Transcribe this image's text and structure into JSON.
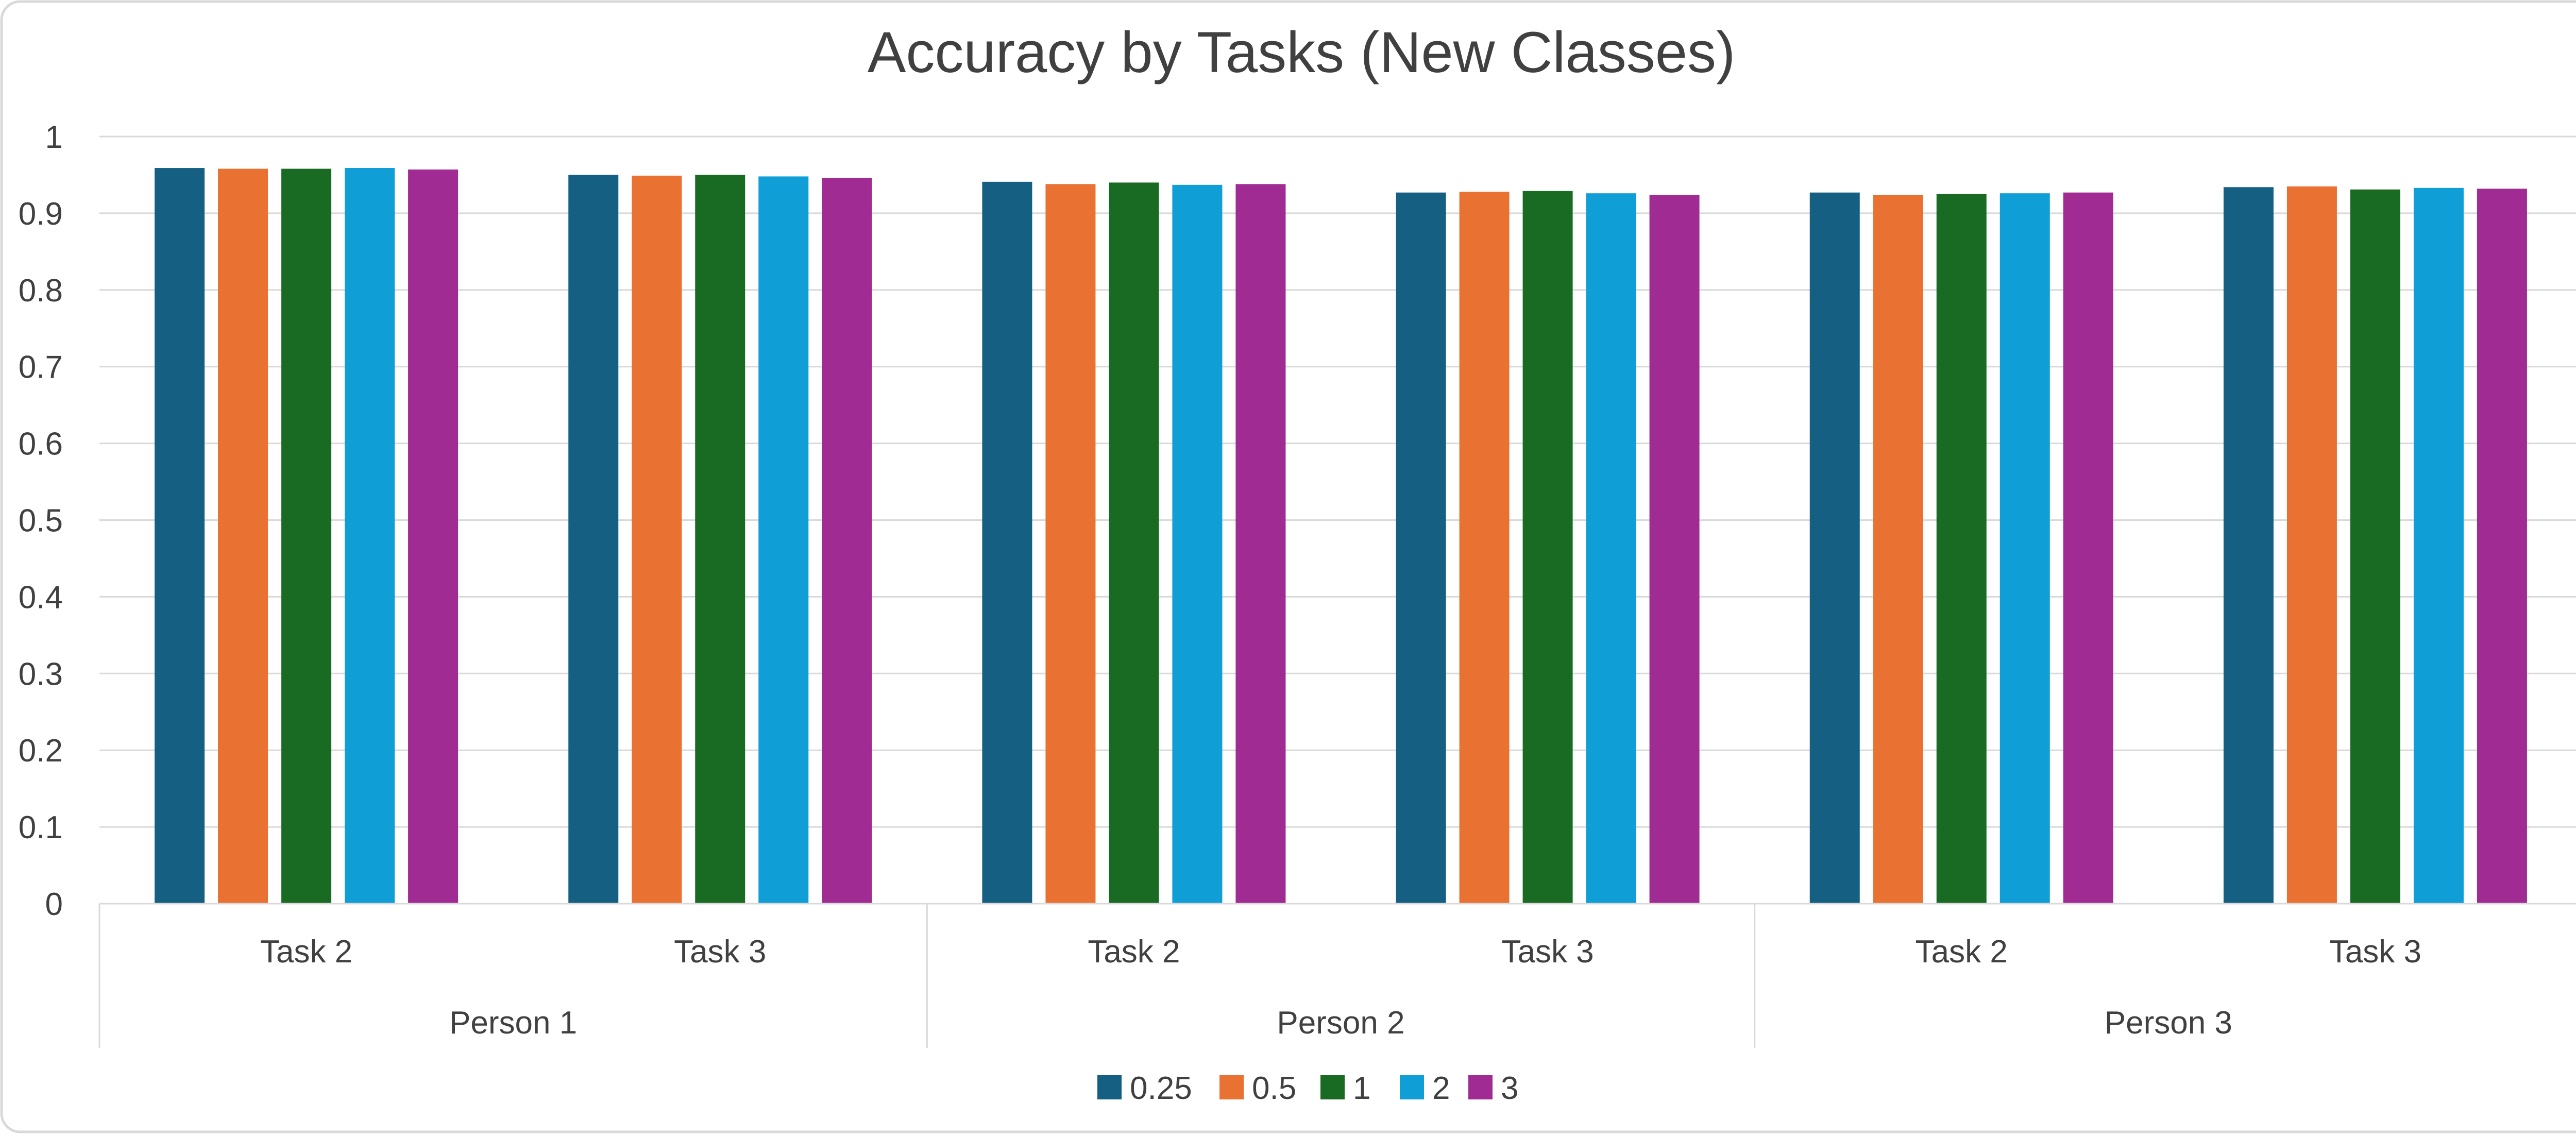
{
  "chart_data": {
    "type": "bar",
    "title": "Accuracy by Tasks (New Classes)",
    "xlabel": "",
    "ylabel": "",
    "ylim": [
      0,
      1
    ],
    "yticks": [
      0,
      0.1,
      0.2,
      0.3,
      0.4,
      0.5,
      0.6,
      0.7,
      0.8,
      0.9,
      1
    ],
    "grid": true,
    "legend_position": "bottom",
    "groups": [
      "Person 1",
      "Person 2",
      "Person 3"
    ],
    "categories": [
      "Task 2",
      "Task 3",
      "Task 2",
      "Task 3",
      "Task 2",
      "Task 3"
    ],
    "series": [
      {
        "name": "0.25",
        "color": "#156082",
        "values": [
          0.959,
          0.95,
          0.941,
          0.927,
          0.927,
          0.934
        ]
      },
      {
        "name": "0.5",
        "color": "#E97132",
        "values": [
          0.958,
          0.949,
          0.938,
          0.928,
          0.924,
          0.935
        ]
      },
      {
        "name": "1",
        "color": "#196B24",
        "values": [
          0.958,
          0.95,
          0.94,
          0.929,
          0.925,
          0.931
        ]
      },
      {
        "name": "2",
        "color": "#0F9ED5",
        "values": [
          0.959,
          0.948,
          0.937,
          0.926,
          0.926,
          0.933
        ]
      },
      {
        "name": "3",
        "color": "#A02B93",
        "values": [
          0.957,
          0.946,
          0.938,
          0.924,
          0.927,
          0.932
        ]
      }
    ]
  },
  "style": {
    "border_color": "#D9D9D9",
    "grid_color": "#D9D9D9",
    "axis_line_color": "#D9D9D9",
    "text_color": "#404040",
    "title_color": "#404040"
  }
}
